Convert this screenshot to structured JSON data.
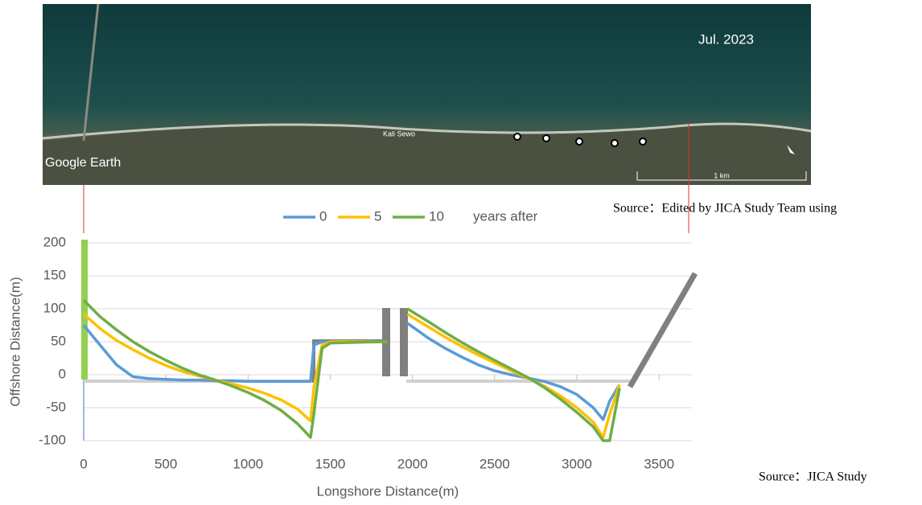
{
  "image": {
    "date": "Jul. 2023",
    "watermark": "Google Earth",
    "place": "Kali Sewo",
    "scale": "1 km"
  },
  "source_top": "Source：Edited by JICA Study Team using",
  "source_bottom": "Source：JICA Study",
  "chart_data": {
    "type": "line",
    "x_label": "Longshore Distance(m)",
    "y_label": "Offshore Distance(m)",
    "legend_suffix": "years after",
    "x": [
      0,
      100,
      200,
      300,
      400,
      500,
      600,
      700,
      800,
      900,
      1000,
      1100,
      1200,
      1300,
      1380,
      1400,
      1450,
      1500,
      1800,
      1850,
      1900,
      1970,
      2100,
      2200,
      2300,
      2400,
      2500,
      2600,
      2700,
      2800,
      2900,
      3000,
      3100,
      3160,
      3200,
      3260
    ],
    "series": [
      {
        "name": "0",
        "color": "#5b9bd5",
        "values": [
          75,
          45,
          15,
          -3,
          -6,
          -7,
          -8,
          -8,
          -9,
          -9,
          -10,
          -10,
          -10,
          -10,
          -10,
          45,
          50,
          50,
          50,
          50,
          null,
          78,
          55,
          40,
          27,
          15,
          6,
          0,
          -5,
          -10,
          -18,
          -30,
          -50,
          -68,
          -40,
          -15
        ]
      },
      {
        "name": "5",
        "color": "#ffc000",
        "values": [
          92,
          70,
          52,
          38,
          25,
          14,
          5,
          -2,
          -8,
          -14,
          -20,
          -28,
          -38,
          -52,
          -70,
          -20,
          45,
          50,
          50,
          50,
          null,
          92,
          72,
          57,
          43,
          30,
          18,
          6,
          -5,
          -17,
          -32,
          -50,
          -72,
          -95,
          -60,
          -15
        ]
      },
      {
        "name": "10",
        "color": "#70ad47",
        "values": [
          113,
          88,
          68,
          50,
          35,
          22,
          10,
          0,
          -8,
          -17,
          -27,
          -39,
          -54,
          -74,
          -95,
          -60,
          40,
          48,
          50,
          50,
          null,
          100,
          80,
          64,
          49,
          35,
          22,
          9,
          -4,
          -19,
          -37,
          -57,
          -79,
          -100,
          -100,
          -20
        ]
      }
    ],
    "xlim": [
      0,
      3700
    ],
    "xticks": [
      0,
      500,
      1000,
      1500,
      2000,
      2500,
      3000,
      3500
    ],
    "ylim": [
      -100,
      200
    ],
    "yticks": [
      -100,
      -50,
      0,
      50,
      100,
      150,
      200
    ],
    "grid": true
  }
}
